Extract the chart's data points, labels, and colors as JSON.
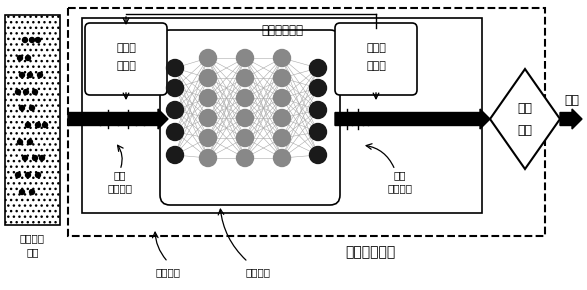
{
  "bg_color": "#ffffff",
  "camera_label": [
    "事件成像",
    "装置"
  ],
  "snn_label": "脉冲神经网络",
  "counter1_label": [
    "第一计",
    "数模块"
  ],
  "counter2_label": [
    "第二计",
    "数模块"
  ],
  "decision_label": [
    "决策",
    "模块"
  ],
  "output_label": "输出",
  "neuromorphic_label": "神经拟态芯片",
  "input_pulse_label": [
    "输入",
    "脉冲事件"
  ],
  "output_pulse_label": [
    "输出",
    "脉冲事件"
  ],
  "off_chip_label": "片外决策",
  "on_chip_label": "片内决策"
}
